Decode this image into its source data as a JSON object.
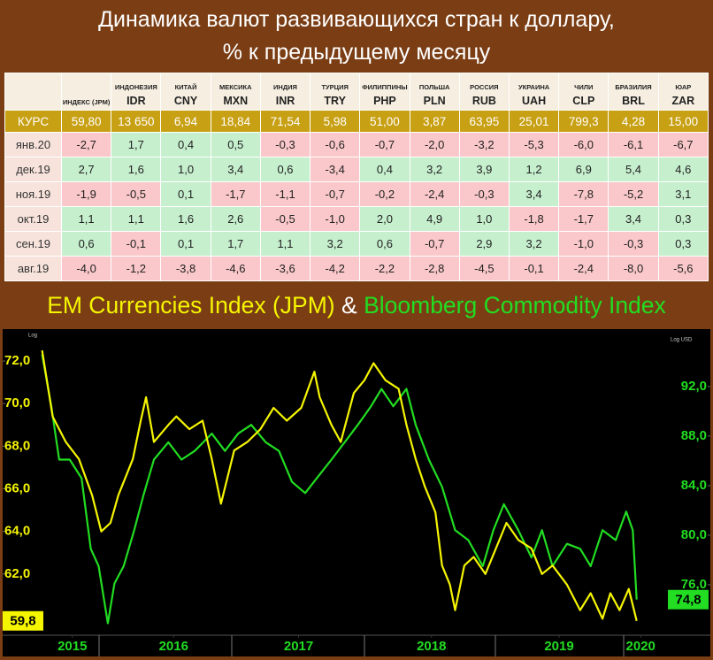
{
  "title_lines": [
    "Динамика валют развивающихся стран к доллару,",
    "% к предыдущему месяцу"
  ],
  "table": {
    "positive_color": "#c6efce",
    "negative_color": "#fac8ca",
    "columns": [
      {
        "name": "ИНДЕКС (JPM)"
      },
      {
        "name": "ИНДОНЕЗИЯ",
        "code": "IDR"
      },
      {
        "name": "КИТАЙ",
        "code": "CNY"
      },
      {
        "name": "МЕКСИКА",
        "code": "MXN"
      },
      {
        "name": "ИНДИЯ",
        "code": "INR"
      },
      {
        "name": "ТУРЦИЯ",
        "code": "TRY"
      },
      {
        "name": "ФИЛИППИНЫ",
        "code": "PHP"
      },
      {
        "name": "ПОЛЬША",
        "code": "PLN"
      },
      {
        "name": "РОССИЯ",
        "code": "RUB"
      },
      {
        "name": "УКРАИНА",
        "code": "UAH"
      },
      {
        "name": "ЧИЛИ",
        "code": "CLP"
      },
      {
        "name": "БРАЗИЛИЯ",
        "code": "BRL"
      },
      {
        "name": "ЮАР",
        "code": "ZAR"
      }
    ],
    "rate": {
      "label": "КУРС",
      "cells": [
        "59,80",
        "13 650",
        "6,94",
        "18,84",
        "71,54",
        "5,98",
        "51,00",
        "3,87",
        "63,95",
        "25,01",
        "799,3",
        "4,28",
        "15,00"
      ]
    },
    "rows": [
      {
        "label": "янв.20",
        "cells": [
          "-2,7",
          "1,7",
          "0,4",
          "0,5",
          "-0,3",
          "-0,6",
          "-0,7",
          "-2,0",
          "-3,2",
          "-5,3",
          "-6,0",
          "-6,1",
          "-6,7"
        ]
      },
      {
        "label": "дек.19",
        "cells": [
          "2,7",
          "1,6",
          "1,0",
          "3,4",
          "0,6",
          "-3,4",
          "0,4",
          "3,2",
          "3,9",
          "1,2",
          "6,9",
          "5,4",
          "4,6"
        ]
      },
      {
        "label": "ноя.19",
        "cells": [
          "-1,9",
          "-0,5",
          "0,1",
          "-1,7",
          "-1,1",
          "-0,7",
          "-0,2",
          "-2,4",
          "-0,3",
          "3,4",
          "-7,8",
          "-5,2",
          "3,1"
        ]
      },
      {
        "label": "окт.19",
        "cells": [
          "1,1",
          "1,1",
          "1,6",
          "2,6",
          "-0,5",
          "-1,0",
          "2,0",
          "4,9",
          "1,0",
          "-1,8",
          "-1,7",
          "3,4",
          "0,3"
        ]
      },
      {
        "label": "сен.19",
        "cells": [
          "0,6",
          "-0,1",
          "0,1",
          "1,7",
          "1,1",
          "3,2",
          "0,6",
          "-0,7",
          "2,9",
          "3,2",
          "-1,0",
          "-0,3",
          "0,3"
        ]
      },
      {
        "label": "авг.19",
        "cells": [
          "-4,0",
          "-1,2",
          "-3,8",
          "-4,6",
          "-3,6",
          "-4,2",
          "-2,2",
          "-2,8",
          "-4,5",
          "-0,1",
          "-2,4",
          "-8,0",
          "-5,6"
        ]
      }
    ]
  },
  "chart_data": {
    "type": "line",
    "title_joiner": "&",
    "y_label": "Log",
    "y2_label": "Log USD",
    "xlim": [
      2015.25,
      2020.67
    ],
    "xticks": [
      {
        "value": 2015.8,
        "label": "2015"
      },
      {
        "value": 2016.57,
        "label": "2016"
      },
      {
        "value": 2017.52,
        "label": "2017"
      },
      {
        "value": 2018.53,
        "label": "2018"
      },
      {
        "value": 2019.5,
        "label": "2019"
      },
      {
        "value": 2020.12,
        "label": "2020"
      }
    ],
    "ylim": [
      59.25,
      73.25
    ],
    "yticks": [
      {
        "value": 62,
        "label": "62,0"
      },
      {
        "value": 64,
        "label": "64,0"
      },
      {
        "value": 66,
        "label": "66,0"
      },
      {
        "value": 68,
        "label": "68,0"
      },
      {
        "value": 70,
        "label": "70,0"
      },
      {
        "value": 72,
        "label": "72,0"
      }
    ],
    "y2lim": [
      72.14,
      96.2
    ],
    "y2ticks": [
      {
        "value": 76,
        "label": "76,0"
      },
      {
        "value": 80,
        "label": "80,0"
      },
      {
        "value": 84,
        "label": "84,0"
      },
      {
        "value": 88,
        "label": "88,0"
      },
      {
        "value": 92,
        "label": "92,0"
      }
    ],
    "series": [
      {
        "name": "EM Currencies Index (JPM)",
        "color": "#f5f500",
        "x": [
          2015.57,
          2015.65,
          2015.75,
          2015.85,
          2015.95,
          2016.02,
          2016.09,
          2016.15,
          2016.26,
          2016.32,
          2016.36,
          2016.42,
          2016.53,
          2016.59,
          2016.69,
          2016.79,
          2016.86,
          2016.93,
          2017.03,
          2017.13,
          2017.23,
          2017.33,
          2017.43,
          2017.54,
          2017.64,
          2017.68,
          2017.77,
          2017.84,
          2017.94,
          2018.02,
          2018.09,
          2018.18,
          2018.28,
          2018.34,
          2018.41,
          2018.48,
          2018.56,
          2018.61,
          2018.67,
          2018.71,
          2018.78,
          2018.85,
          2018.94,
          2019.02,
          2019.1,
          2019.19,
          2019.29,
          2019.37,
          2019.45,
          2019.56,
          2019.66,
          2019.74,
          2019.83,
          2019.89,
          2019.96,
          2020.03,
          2020.09
        ],
        "values": [
          72.5,
          69.4,
          68.2,
          67.4,
          65.7,
          64.0,
          64.4,
          65.7,
          67.4,
          69.2,
          70.3,
          68.2,
          69.0,
          69.4,
          68.8,
          69.2,
          67.4,
          65.3,
          67.8,
          68.2,
          68.8,
          69.8,
          69.2,
          69.8,
          71.5,
          70.3,
          69.0,
          68.2,
          70.5,
          71.1,
          71.9,
          71.1,
          70.7,
          69.0,
          67.4,
          66.1,
          64.9,
          62.4,
          61.5,
          60.3,
          62.4,
          62.8,
          62.0,
          63.2,
          64.4,
          63.6,
          63.2,
          62.0,
          62.4,
          61.5,
          60.3,
          61.1,
          59.9,
          61.1,
          60.3,
          61.3,
          59.8
        ],
        "value_labels": [
          null,
          null,
          null,
          null,
          null,
          null,
          null,
          null,
          null,
          null,
          null,
          null,
          null,
          null,
          null,
          null,
          null,
          null,
          null,
          null,
          null,
          null,
          null,
          null,
          null,
          null,
          null,
          null,
          null,
          null,
          null,
          null,
          null,
          null,
          null,
          null,
          null,
          null,
          null,
          null,
          null,
          null,
          null,
          null,
          null,
          null,
          null,
          null,
          null,
          null,
          null,
          null,
          null,
          null,
          null,
          null,
          "59,8"
        ]
      },
      {
        "name": "Bloomberg Commodity Index",
        "color": "#22dd22",
        "axis": "y2",
        "x": [
          2015.57,
          2015.64,
          2015.7,
          2015.78,
          2015.87,
          2015.94,
          2016.0,
          2016.07,
          2016.12,
          2016.19,
          2016.27,
          2016.34,
          2016.42,
          2016.53,
          2016.63,
          2016.73,
          2016.86,
          2016.96,
          2017.06,
          2017.16,
          2017.27,
          2017.37,
          2017.47,
          2017.57,
          2017.68,
          2017.77,
          2017.87,
          2017.97,
          2018.07,
          2018.15,
          2018.24,
          2018.34,
          2018.41,
          2018.51,
          2018.61,
          2018.71,
          2018.81,
          2018.92,
          2019.0,
          2019.08,
          2019.19,
          2019.29,
          2019.37,
          2019.45,
          2019.56,
          2019.66,
          2019.74,
          2019.83,
          2019.93,
          2020.01,
          2020.06,
          2020.09
        ],
        "values": [
          94.6,
          90.4,
          86.1,
          86.1,
          84.6,
          78.9,
          77.5,
          72.9,
          76.1,
          77.5,
          80.4,
          83.2,
          86.1,
          87.5,
          86.1,
          86.8,
          88.2,
          86.8,
          88.2,
          88.9,
          87.5,
          86.8,
          84.3,
          83.4,
          84.9,
          86.1,
          87.5,
          88.9,
          90.4,
          91.8,
          90.4,
          91.8,
          88.9,
          86.1,
          83.9,
          80.4,
          79.6,
          77.5,
          80.4,
          82.5,
          80.4,
          78.2,
          80.4,
          77.5,
          79.3,
          78.9,
          77.5,
          80.4,
          79.6,
          81.9,
          80.4,
          74.8
        ],
        "value_labels": [
          null,
          null,
          null,
          null,
          null,
          null,
          null,
          null,
          null,
          null,
          null,
          null,
          null,
          null,
          null,
          null,
          null,
          null,
          null,
          null,
          null,
          null,
          null,
          null,
          null,
          null,
          null,
          null,
          null,
          null,
          null,
          null,
          null,
          null,
          null,
          null,
          null,
          null,
          null,
          null,
          null,
          null,
          null,
          null,
          null,
          null,
          null,
          null,
          null,
          null,
          null,
          "74,8"
        ]
      }
    ]
  }
}
